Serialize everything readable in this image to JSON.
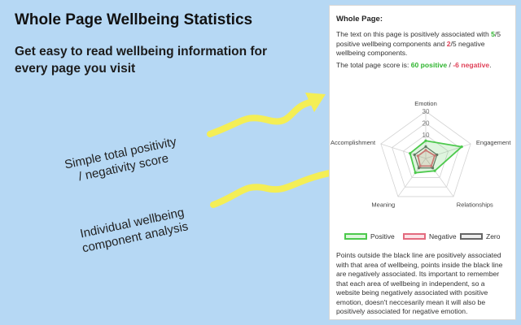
{
  "promo": {
    "title": "Whole Page Wellbeing Statistics",
    "subtitle": "Get easy to read wellbeing information for every page you visit",
    "callouts": [
      {
        "line1": "Simple total positivity",
        "line2": "/ negativity score"
      },
      {
        "line1": "Individual wellbeing",
        "line2": "component analysis"
      }
    ]
  },
  "panel": {
    "heading": "Whole Page:",
    "summary": {
      "prefix": "The text on this page is positively associated with ",
      "pos_count": "5",
      "mid1": "/5 positive wellbeing components and ",
      "neg_count": "2",
      "suffix": "/5 negative wellbeing components."
    },
    "score": {
      "prefix": "The total page score is: ",
      "pos": "60 positive",
      "sep": " / ",
      "neg": "-6 negative",
      "end": "."
    },
    "explanation": "Points outside the black line are positively associated with that area of wellbeing, points inside the black line are negatively associated. Its important to remember that each area of wellbeing in independent, so a website being negatively associated with positive emotion, doesn't neccesarily mean it will also be positively associated for negative emotion."
  },
  "chart_data": {
    "type": "radar",
    "axes": [
      "Emotion",
      "Engagement",
      "Relationships",
      "Meaning",
      "Accomplishment"
    ],
    "ticks": [
      "10",
      "20",
      "30"
    ],
    "range": [
      -10,
      30
    ],
    "series": [
      {
        "name": "Positive",
        "values": [
          5,
          22,
          3,
          5,
          4
        ],
        "color": "#4cc94c"
      },
      {
        "name": "Negative",
        "values": [
          -3,
          -2,
          -2,
          -2,
          -3
        ],
        "color": "#e36a7e"
      },
      {
        "name": "Zero",
        "values": [
          0,
          0,
          0,
          0,
          0
        ],
        "color": "#666666"
      }
    ]
  },
  "legend": {
    "positive": "Positive",
    "negative": "Negative",
    "zero": "Zero"
  },
  "colors": {
    "background": "#b6d8f4",
    "arrow": "#f4ee55",
    "positive": "#4cc94c",
    "negative": "#e36a7e",
    "zero": "#666666"
  }
}
